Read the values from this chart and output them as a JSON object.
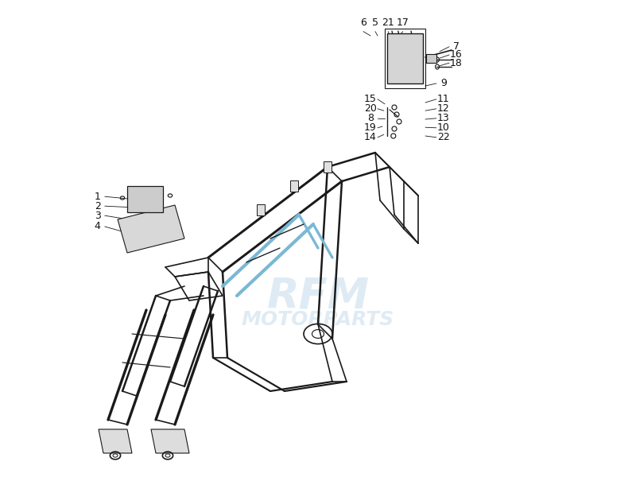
{
  "bg_color": "#ffffff",
  "line_color": "#1a1a1a",
  "watermark_color": "#b8d4e8",
  "watermark_alpha": 0.45,
  "label_color": "#111111",
  "label_fontsize": 9,
  "frame_linewidth": 1.2,
  "inner_blue": "#7ab8d4"
}
